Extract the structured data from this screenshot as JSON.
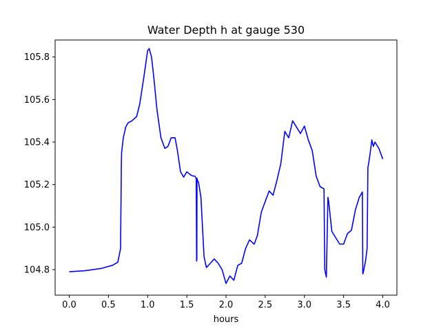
{
  "chart_data": {
    "type": "line",
    "title": "Water Depth h at gauge 530",
    "xlabel": "hours",
    "ylabel": "",
    "xlim": [
      -0.18,
      4.18
    ],
    "ylim": [
      104.68,
      105.88
    ],
    "xticks": [
      0.0,
      0.5,
      1.0,
      1.5,
      2.0,
      2.5,
      3.0,
      3.5,
      4.0
    ],
    "xtick_labels": [
      "0.0",
      "0.5",
      "1.0",
      "1.5",
      "2.0",
      "2.5",
      "3.0",
      "3.5",
      "4.0"
    ],
    "yticks": [
      104.8,
      105.0,
      105.2,
      105.4,
      105.6,
      105.8
    ],
    "ytick_labels": [
      "104.8",
      "105.0",
      "105.2",
      "105.4",
      "105.6",
      "105.8"
    ],
    "grid": false,
    "series": [
      {
        "color": "#0000ff",
        "x": [
          0.0,
          0.2,
          0.4,
          0.55,
          0.62,
          0.655,
          0.665,
          0.668,
          0.69,
          0.72,
          0.75,
          0.8,
          0.83,
          0.86,
          0.9,
          0.95,
          1.0,
          1.02,
          1.05,
          1.08,
          1.12,
          1.17,
          1.22,
          1.26,
          1.3,
          1.35,
          1.38,
          1.42,
          1.46,
          1.5,
          1.55,
          1.58,
          1.6,
          1.62,
          1.625,
          1.628,
          1.63,
          1.635,
          1.65,
          1.68,
          1.7,
          1.72,
          1.75,
          1.8,
          1.85,
          1.9,
          1.95,
          2.0,
          2.05,
          2.1,
          2.15,
          2.2,
          2.25,
          2.3,
          2.33,
          2.36,
          2.4,
          2.45,
          2.5,
          2.55,
          2.6,
          2.65,
          2.7,
          2.75,
          2.8,
          2.85,
          2.9,
          2.95,
          3.0,
          3.05,
          3.1,
          3.15,
          3.2,
          3.25,
          3.26,
          3.265,
          3.28,
          3.3,
          3.31,
          3.35,
          3.4,
          3.45,
          3.5,
          3.55,
          3.6,
          3.65,
          3.7,
          3.74,
          3.745,
          3.75,
          3.78,
          3.8,
          3.81,
          3.82,
          3.84,
          3.86,
          3.88,
          3.9,
          3.95,
          4.0
        ],
        "values": [
          104.79,
          104.795,
          104.805,
          104.82,
          104.835,
          104.9,
          105.3,
          105.35,
          105.42,
          105.47,
          105.49,
          105.5,
          105.51,
          105.52,
          105.58,
          105.7,
          105.83,
          105.84,
          105.8,
          105.7,
          105.55,
          105.42,
          105.37,
          105.38,
          105.42,
          105.42,
          105.36,
          105.26,
          105.235,
          105.26,
          105.245,
          105.24,
          105.24,
          105.23,
          104.84,
          104.85,
          105.23,
          105.22,
          105.21,
          105.14,
          105.0,
          104.86,
          104.81,
          104.83,
          104.85,
          104.83,
          104.8,
          104.735,
          104.77,
          104.75,
          104.82,
          104.83,
          104.9,
          104.94,
          104.93,
          104.92,
          104.96,
          105.07,
          105.12,
          105.17,
          105.15,
          105.22,
          105.3,
          105.45,
          105.42,
          105.5,
          105.47,
          105.44,
          105.475,
          105.41,
          105.36,
          105.24,
          105.19,
          105.18,
          104.8,
          104.79,
          104.765,
          105.14,
          105.12,
          104.98,
          104.95,
          104.92,
          104.92,
          104.97,
          104.985,
          105.08,
          105.14,
          105.165,
          104.78,
          104.785,
          104.84,
          104.9,
          105.28,
          105.3,
          105.35,
          105.41,
          105.38,
          105.4,
          105.37,
          105.32
        ]
      }
    ]
  }
}
